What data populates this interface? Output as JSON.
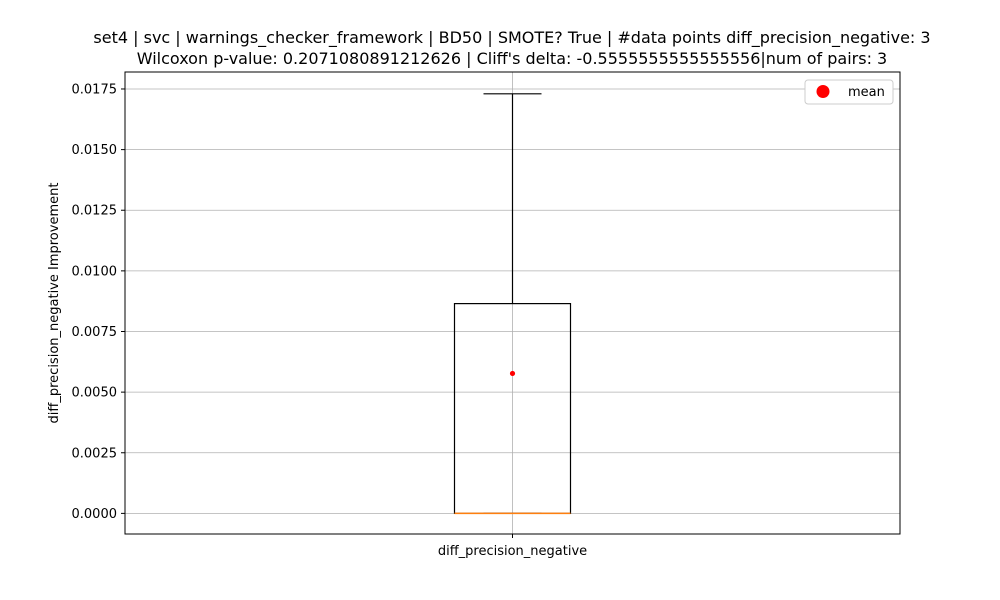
{
  "chart_data": {
    "type": "box",
    "title_line1": "set4 | svc | warnings_checker_framework | BD50 | SMOTE? True | #data points diff_precision_negative: 3",
    "title_line2": "Wilcoxon p-value: 0.2071080891212626 | Cliff's delta: -0.5555555555555556|num of pairs: 3",
    "xlabel": "",
    "ylabel": "diff_precision_negative Improvement",
    "categories": [
      "diff_precision_negative"
    ],
    "ylim": [
      -0.00085,
      0.0182
    ],
    "yticks": [
      0.0,
      0.0025,
      0.005,
      0.0075,
      0.01,
      0.0125,
      0.015,
      0.0175
    ],
    "ytick_labels": [
      "0.0000",
      "0.0025",
      "0.0050",
      "0.0075",
      "0.0100",
      "0.0125",
      "0.0150",
      "0.0175"
    ],
    "grid": true,
    "box": {
      "whisker_low": 0.0,
      "q1": 0.0,
      "median": 0.0,
      "q3": 0.00865,
      "whisker_high": 0.0173,
      "mean": 0.00577
    },
    "legend": {
      "placement": "top-right",
      "entries": [
        {
          "label": "mean",
          "color": "#ff0000"
        }
      ]
    },
    "colors": {
      "box": "#000000",
      "median": "#ff7f0e",
      "mean": "#ff0000",
      "grid": "#b0b0b0"
    }
  }
}
